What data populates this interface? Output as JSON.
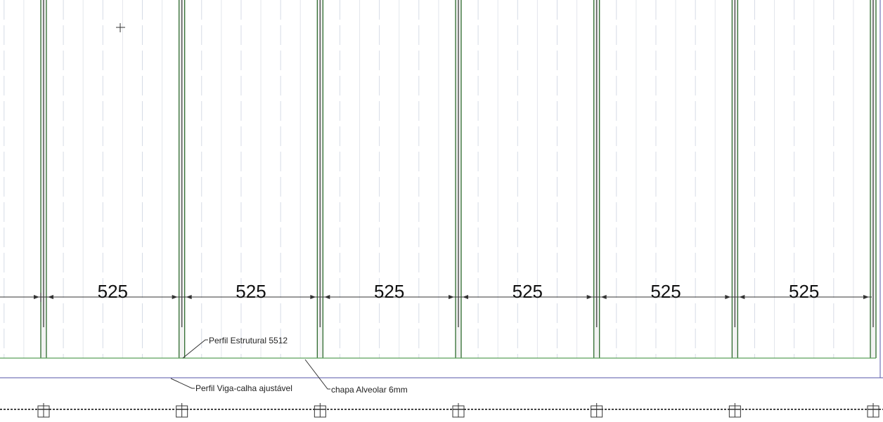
{
  "dimensions": [
    525,
    525,
    525,
    525,
    525,
    525
  ],
  "annotations": {
    "profile": "Perfil Estrutural 5512",
    "gutter": "Perfil Viga-calha ajustável",
    "sheet": "chapa Alveolar 6mm"
  }
}
